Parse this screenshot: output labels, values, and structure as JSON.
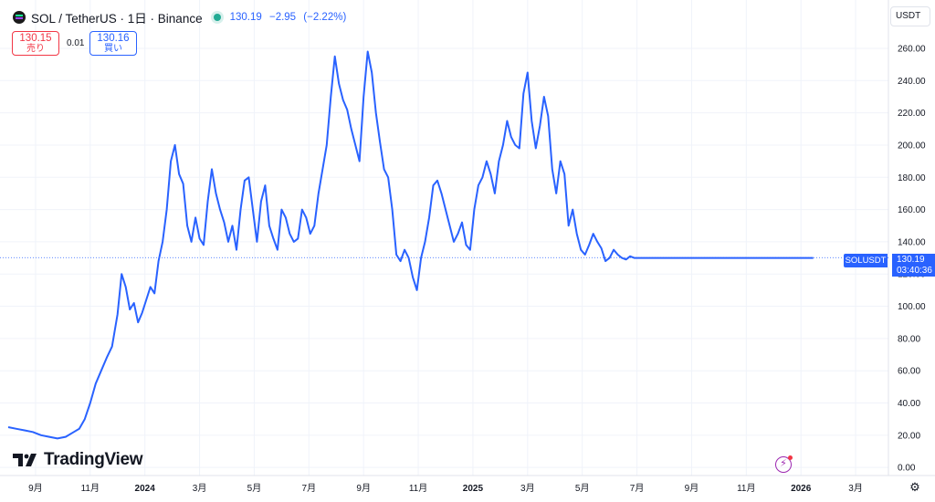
{
  "header": {
    "symbol_title": "SOL / TetherUS · 1日 · Binance",
    "icon": "solana-coin-icon",
    "status_icon": "market-open-dot-icon",
    "last": "130.19",
    "change": "−2.95",
    "change_pct": "(−2.22%)"
  },
  "trade": {
    "sell_price": "130.15",
    "sell_label": "売り",
    "spread": "0.01",
    "buy_price": "130.16",
    "buy_label": "買い"
  },
  "currency_button": "USDT",
  "branding": {
    "logo_text": "TradingView",
    "icon": "tradingview-logo-icon"
  },
  "price_line": {
    "symbol_label": "SOLUSDT",
    "price": "130.19",
    "countdown": "03:40:36"
  },
  "toolbar": {
    "flash_icon": "lightning-icon",
    "settings_icon": "gear-icon"
  },
  "colors": {
    "line": "#2962ff",
    "grid": "#f0f3fa",
    "text": "#131722",
    "up": "#22ab94",
    "down": "#f23645"
  },
  "chart_data": {
    "type": "line",
    "title": "SOL / TetherUS · 1日 · Binance",
    "series": [
      {
        "name": "SOLUSDT",
        "x": [
          -1,
          -0.7,
          -0.4,
          -0.1,
          0.2,
          0.5,
          0.8,
          1.1,
          1.4,
          1.6,
          1.8,
          2.0,
          2.2,
          2.4,
          2.6,
          2.8,
          3.0,
          3.15,
          3.3,
          3.45,
          3.6,
          3.75,
          3.9,
          4.05,
          4.2,
          4.35,
          4.5,
          4.65,
          4.8,
          4.95,
          5.1,
          5.25,
          5.4,
          5.55,
          5.7,
          5.85,
          6.0,
          6.15,
          6.3,
          6.45,
          6.6,
          6.75,
          6.9,
          7.05,
          7.2,
          7.35,
          7.5,
          7.65,
          7.8,
          7.95,
          8.1,
          8.25,
          8.4,
          8.55,
          8.7,
          8.85,
          9.0,
          9.15,
          9.3,
          9.45,
          9.6,
          9.75,
          9.9,
          10.05,
          10.2,
          10.35,
          10.5,
          10.65,
          10.8,
          10.95,
          11.1,
          11.25,
          11.4,
          11.55,
          11.7,
          11.85,
          12.0,
          12.15,
          12.3,
          12.45,
          12.6,
          12.75,
          12.9,
          13.05,
          13.2,
          13.35,
          13.5,
          13.65,
          13.8,
          13.95,
          14.1,
          14.25,
          14.4,
          14.55,
          14.7,
          14.85,
          15.0,
          15.15,
          15.3,
          15.45,
          15.6,
          15.75,
          15.9,
          16.05,
          16.2,
          16.35,
          16.5,
          16.65,
          16.8,
          16.95,
          17.1,
          17.25,
          17.4,
          17.55,
          17.7,
          17.85,
          18.0,
          18.15,
          18.3,
          18.45,
          18.6,
          18.75,
          18.9,
          19.05,
          19.2,
          19.35,
          19.5,
          19.65,
          19.8,
          19.95,
          20.1,
          20.25,
          20.4,
          20.55,
          20.7,
          20.85,
          21.0,
          21.15,
          21.3,
          21.45,
          21.6,
          21.75,
          21.9,
          22.05,
          22.2,
          22.35,
          22.5,
          22.65,
          22.8,
          22.95,
          23.1,
          23.25,
          23.4,
          23.55,
          23.7,
          23.85,
          24.0,
          24.15,
          24.3,
          24.45,
          24.6,
          24.75,
          24.9,
          25.05,
          25.2,
          25.35,
          25.5,
          25.65,
          25.8,
          25.95,
          26.1,
          26.25,
          26.4,
          26.55,
          26.7,
          26.85,
          27.0,
          27.15,
          27.3,
          27.45,
          27.6,
          27.75,
          27.9,
          28.05,
          28.2,
          28.35,
          28.45
        ],
        "y": [
          25,
          24,
          23,
          22,
          20,
          19,
          18,
          19,
          22,
          24,
          30,
          40,
          52,
          60,
          68,
          75,
          95,
          120,
          112,
          98,
          102,
          90,
          96,
          104,
          112,
          108,
          128,
          140,
          160,
          190,
          200,
          182,
          176,
          150,
          140,
          155,
          142,
          138,
          165,
          185,
          170,
          160,
          152,
          140,
          150,
          135,
          160,
          178,
          180,
          160,
          140,
          165,
          175,
          150,
          142,
          135,
          160,
          155,
          145,
          140,
          142,
          160,
          155,
          145,
          150,
          170,
          185,
          200,
          230,
          255,
          238,
          228,
          222,
          210,
          200,
          190,
          230,
          258,
          245,
          220,
          202,
          185,
          180,
          160,
          132,
          128,
          135,
          130,
          118,
          110,
          130,
          140,
          155,
          175,
          178,
          170,
          160,
          150,
          140,
          145,
          152,
          138,
          135,
          160,
          175,
          180,
          190,
          182,
          170,
          190,
          200,
          215,
          205,
          200,
          198,
          232,
          245,
          215,
          198,
          212,
          230,
          218,
          185,
          170,
          190,
          182,
          150,
          160,
          145,
          135,
          132,
          138,
          145,
          140,
          136,
          128,
          130,
          135,
          132,
          130,
          129,
          131,
          130,
          130,
          130,
          130,
          130,
          130,
          130,
          130,
          130,
          130,
          130,
          130,
          130,
          130,
          130,
          130,
          130,
          130,
          130,
          130,
          130,
          130,
          130,
          130,
          130,
          130,
          130,
          130,
          130,
          130,
          130,
          130,
          130,
          130,
          130,
          130,
          130,
          130,
          130,
          130,
          130,
          130,
          130,
          130,
          130
        ]
      }
    ],
    "x_ticks": [
      {
        "pos": 0,
        "label": "9月"
      },
      {
        "pos": 2,
        "label": "11月"
      },
      {
        "pos": 4,
        "label": "2024"
      },
      {
        "pos": 6,
        "label": "3月"
      },
      {
        "pos": 8,
        "label": "5月"
      },
      {
        "pos": 10,
        "label": "7月"
      },
      {
        "pos": 12,
        "label": "9月"
      },
      {
        "pos": 14,
        "label": "11月"
      },
      {
        "pos": 16,
        "label": "2025"
      },
      {
        "pos": 18,
        "label": "3月"
      },
      {
        "pos": 20,
        "label": "5月"
      },
      {
        "pos": 22,
        "label": "7月"
      },
      {
        "pos": 24,
        "label": "9月"
      },
      {
        "pos": 26,
        "label": "11月"
      },
      {
        "pos": 28,
        "label": "2026"
      },
      {
        "pos": 30,
        "label": "3月"
      }
    ],
    "bold_ticks": [
      "2024",
      "2025",
      "2026"
    ],
    "y_ticks": [
      0,
      20,
      40,
      60,
      80,
      100,
      120,
      140,
      160,
      180,
      200,
      220,
      240,
      260
    ],
    "y_tick_labels": [
      "0.00",
      "20.00",
      "40.00",
      "60.00",
      "80.00",
      "100.00",
      "120.00",
      "140.00",
      "160.00",
      "180.00",
      "200.00",
      "220.00",
      "240.00",
      "260.00"
    ],
    "ylim": [
      -5,
      290
    ],
    "xlim": [
      -1.3,
      31.2
    ],
    "last_price": 130.19,
    "grid": true
  }
}
